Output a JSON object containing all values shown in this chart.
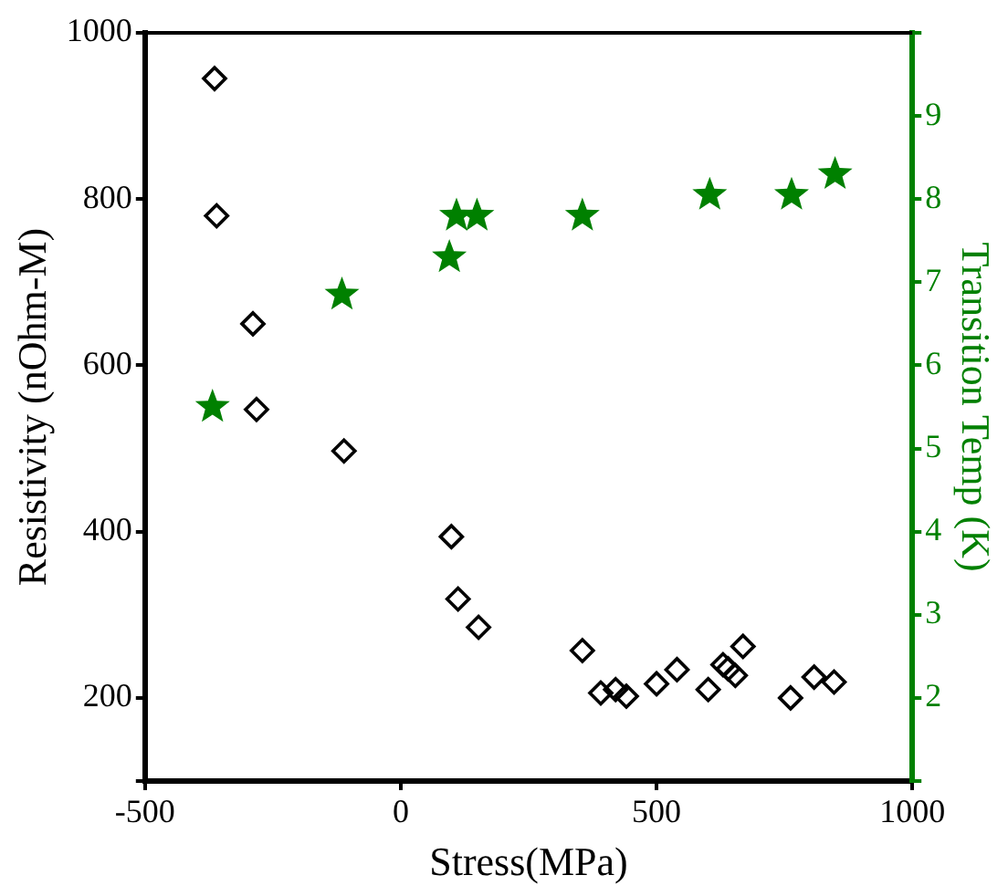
{
  "chart_data": {
    "type": "scatter",
    "xlabel": "Stress(MPa)",
    "ylabel": "Resistivity (nOhm-M)",
    "y2label": "Transition Temp (K)",
    "xlim": [
      -500,
      1000
    ],
    "xticks": [
      -500,
      0,
      500,
      1000
    ],
    "ylim": [
      100,
      1000
    ],
    "yticks": [
      {
        "value": 100,
        "label": null
      },
      200,
      400,
      600,
      800,
      1000
    ],
    "y2lim": [
      1,
      10
    ],
    "y2ticks": [
      {
        "value": 1,
        "label": null
      },
      2,
      3,
      4,
      5,
      6,
      7,
      8,
      9,
      {
        "value": 10,
        "label": null
      }
    ],
    "grid": false,
    "legend": false,
    "series": [
      {
        "color": "#000000",
        "marker": "diamond",
        "x": [
          -364,
          -360,
          -289,
          -282,
          -111,
          99,
          112,
          152,
          355,
          391,
          420,
          441,
          500,
          540,
          601,
          630,
          640,
          654,
          669,
          762,
          808,
          847
        ],
        "values": [
          945,
          780,
          650,
          547,
          497,
          394,
          319,
          285,
          257,
          206,
          210,
          202,
          217,
          234,
          210,
          240,
          235,
          227,
          262,
          200,
          225,
          219
        ]
      },
      {
        "color": "#008000",
        "marker": "star",
        "axis": "y2",
        "x": [
          -368,
          -115,
          95,
          109,
          149,
          355,
          604,
          764,
          849
        ],
        "values": [
          5.5,
          6.85,
          7.3,
          7.8,
          7.8,
          7.8,
          8.05,
          8.05,
          8.3
        ]
      }
    ]
  }
}
